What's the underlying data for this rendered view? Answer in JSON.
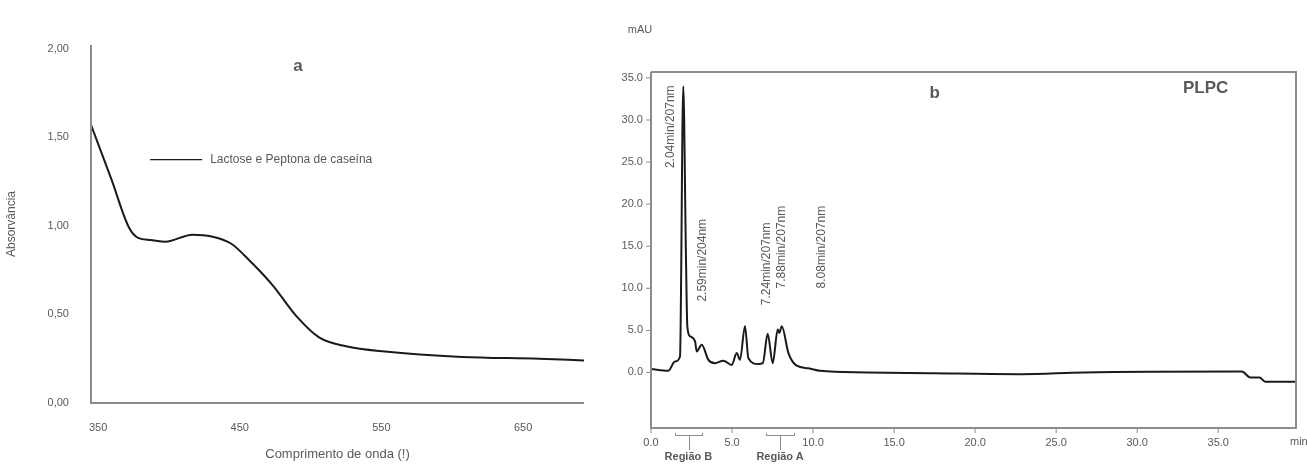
{
  "chart_data": [
    {
      "type": "line",
      "title": "a",
      "xlabel": "Comprimento de onda (!)",
      "ylabel": "Absorvância",
      "legend": "top left",
      "marker": "none",
      "line_style": "solid",
      "grid": false,
      "x": [
        345,
        359.5,
        371.8,
        378.6,
        386.7,
        397.6,
        416.6,
        430.2,
        443.8,
        457.4,
        473.7,
        490,
        506,
        525,
        552.5,
        606.9,
        661.3,
        693
      ],
      "series": [
        {
          "name": "Lactose e Peptona de caseína",
          "color": "#1a1a1a",
          "values": [
            1.57,
            1.26,
            0.99,
            0.93,
            0.92,
            0.91,
            0.95,
            0.94,
            0.9,
            0.8,
            0.66,
            0.49,
            0.37,
            0.32,
            0.29,
            0.26,
            0.25,
            0.24
          ]
        }
      ],
      "xlim": [
        345,
        693
      ],
      "ylim": [
        0,
        2.02
      ],
      "xticks": [
        350,
        450,
        550,
        650
      ],
      "yticks": [
        {
          "value": 0,
          "label": "0,00"
        },
        {
          "value": 0.5,
          "label": "0,50"
        },
        {
          "value": 1,
          "label": "1,00"
        },
        {
          "value": 1.5,
          "label": "1,50"
        },
        {
          "value": 2,
          "label": "2,00"
        }
      ]
    },
    {
      "type": "line",
      "title": "b",
      "subtitle": "PLPC",
      "xlabel": "min",
      "ylabel": "mAU",
      "legend": false,
      "marker": "none",
      "line_style": "solid",
      "grid": false,
      "x": [
        0,
        1.07,
        1.48,
        1.79,
        1.99,
        2.16,
        2.24,
        2.41,
        2.72,
        2.82,
        3.13,
        3.54,
        3.95,
        4.46,
        4.98,
        5.29,
        5.49,
        5.8,
        6.01,
        6.62,
        6.9,
        7.2,
        7.51,
        7.82,
        7.92,
        8.07,
        8.48,
        8.99,
        9.71,
        10.43,
        13.3,
        17.4,
        22.8,
        26.7,
        36.46,
        36.98,
        37.55,
        37.9,
        39.8
      ],
      "series": [
        {
          "color": "#1a1a1a",
          "values": [
            0.4,
            0.2,
            1.3,
            1.9,
            34.0,
            13.4,
            5.5,
            4.3,
            3.7,
            2.5,
            3.3,
            1.5,
            1.1,
            1.4,
            0.9,
            2.3,
            1.5,
            5.5,
            1.7,
            1.0,
            1.1,
            4.6,
            1.1,
            5.1,
            4.7,
            5.5,
            2.3,
            0.8,
            0.5,
            0.2,
            0,
            -0.1,
            -0.2,
            0,
            0.1,
            -0.6,
            -0.6,
            -1.1,
            -1.1
          ]
        }
      ],
      "xlim": [
        0,
        39.8
      ],
      "ylim": [
        -6.6,
        35.7
      ],
      "xticks": [
        {
          "value": 0,
          "label": "0.0"
        },
        {
          "value": 5,
          "label": "5.0"
        },
        {
          "value": 10,
          "label": "10.0"
        },
        {
          "value": 15,
          "label": "15.0"
        },
        {
          "value": 20,
          "label": "20.0"
        },
        {
          "value": 25,
          "label": "25.0"
        },
        {
          "value": 30,
          "label": "30.0"
        },
        {
          "value": 35,
          "label": "35.0"
        }
      ],
      "yticks": [
        {
          "value": 0,
          "label": "0.0"
        },
        {
          "value": 5,
          "label": "5.0"
        },
        {
          "value": 10,
          "label": "10.0"
        },
        {
          "value": 15,
          "label": "15.0"
        },
        {
          "value": 20,
          "label": "20.0"
        },
        {
          "value": 25,
          "label": "25.0"
        },
        {
          "value": 30,
          "label": "30.0"
        },
        {
          "value": 35,
          "label": "35.0"
        }
      ],
      "annotations": [
        "2.04min/207nm",
        "2.59min/204nm",
        "7.24min/207nm",
        "7.88min/207nm",
        "8.08min/207nm",
        "Região B",
        "Região A"
      ]
    }
  ]
}
